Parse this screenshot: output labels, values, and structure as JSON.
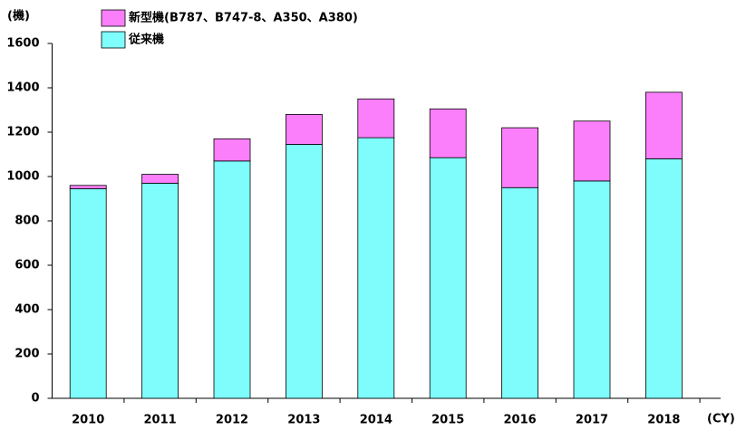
{
  "chart_data": {
    "type": "stacked_bar",
    "y_label": "(機)",
    "x_label": "(CY)",
    "categories": [
      "2010",
      "2011",
      "2012",
      "2013",
      "2014",
      "2015",
      "2016",
      "2017",
      "2018"
    ],
    "series": [
      {
        "name": "従来機",
        "color": "#7ffcfc",
        "values": [
          945,
          970,
          1070,
          1145,
          1175,
          1085,
          950,
          980,
          1080
        ]
      },
      {
        "name": "新型機(B787、B747-8、A350、A380)",
        "color": "#fb7ffb",
        "values": [
          15,
          40,
          100,
          135,
          175,
          220,
          270,
          270,
          300
        ]
      }
    ],
    "ylim": [
      0,
      1600
    ],
    "yticks": [
      0,
      200,
      400,
      600,
      800,
      1000,
      1200,
      1400,
      1600
    ],
    "legend": "top-left"
  }
}
